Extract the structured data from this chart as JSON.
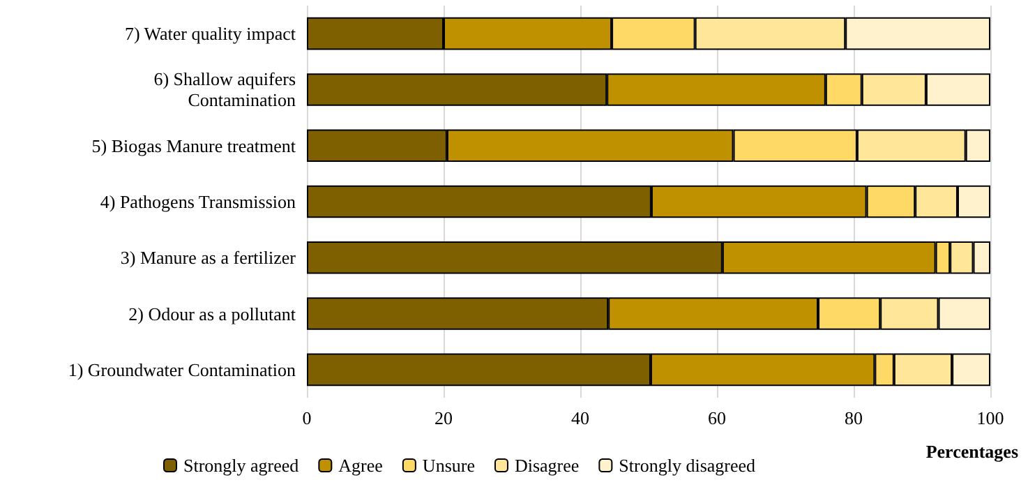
{
  "chart_data": {
    "type": "bar",
    "orientation": "horizontal",
    "stacked": true,
    "xlabel": "Percentages",
    "categories": [
      "7) Water quality impact",
      "6) Shallow aquifers\nContamination",
      "5) Biogas Manure treatment",
      "4) Pathogens Transmission",
      "3) Manure as a fertilizer",
      "2) Odour as a pollutant",
      "1) Groundwater Contamination"
    ],
    "series": [
      {
        "name": "Strongly agreed",
        "color": "#7f6000",
        "values": [
          20,
          43.9,
          20.5,
          50.4,
          60.8,
          44.1,
          50.3
        ]
      },
      {
        "name": "Agree",
        "color": "#bf9000",
        "values": [
          24.6,
          32,
          41.9,
          31.5,
          31.2,
          30.7,
          32.8
        ]
      },
      {
        "name": "Unsure",
        "color": "#ffd966",
        "values": [
          12.2,
          5.3,
          18.1,
          7.1,
          2.1,
          9.1,
          2.8
        ]
      },
      {
        "name": "Disagree",
        "color": "#ffe699",
        "values": [
          22,
          9.4,
          15.9,
          6.2,
          3.4,
          8.5,
          8.5
        ]
      },
      {
        "name": "Strongly disagreed",
        "color": "#fff2cc",
        "values": [
          21.2,
          9.4,
          3.6,
          4.8,
          2.5,
          7.6,
          5.6
        ]
      }
    ],
    "xlim": [
      0,
      100
    ],
    "xticks": [
      0,
      20,
      40,
      60,
      80,
      100
    ],
    "grid": "x",
    "legend": "bottom"
  }
}
